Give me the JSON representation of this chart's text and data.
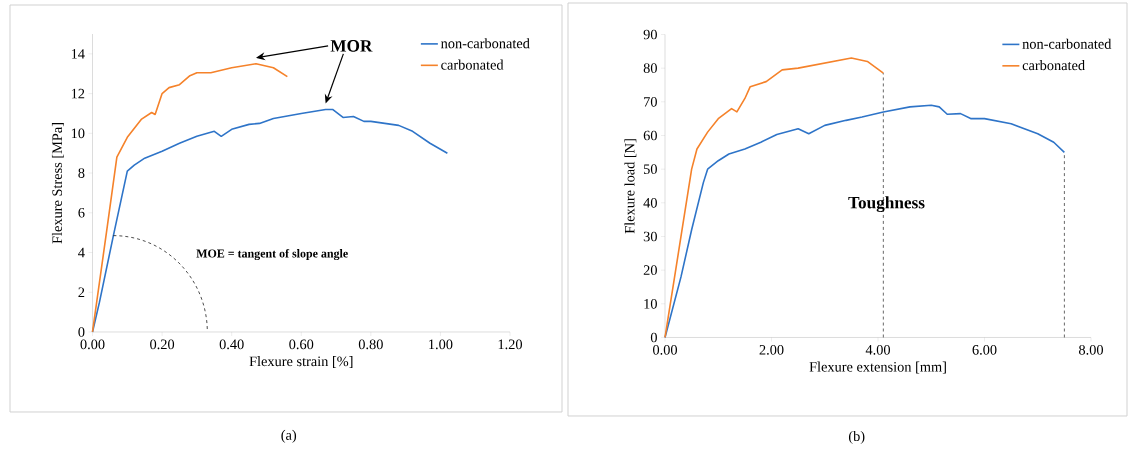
{
  "chart_data": [
    {
      "type": "line",
      "xlabel": "Flexure strain [%]",
      "ylabel": "Flexure Stress [MPa]",
      "xlim": [
        0,
        1.2
      ],
      "ylim": [
        0,
        15
      ],
      "xticks": [
        {
          "value": 0,
          "label": "0.00"
        },
        {
          "value": 0.2,
          "label": "0.20"
        },
        {
          "value": 0.4,
          "label": "0.40"
        },
        {
          "value": 0.6,
          "label": "0.60"
        },
        {
          "value": 0.8,
          "label": "0.80"
        },
        {
          "value": 1.0,
          "label": "1.00"
        },
        {
          "value": 1.2,
          "label": "1.20"
        }
      ],
      "yticks": [
        0,
        2,
        4,
        6,
        8,
        10,
        12,
        14
      ],
      "legend": "top right",
      "series": [
        {
          "name": "non-carbonated",
          "color": "#2e74c8",
          "x": [
            0,
            0.02,
            0.06,
            0.1,
            0.12,
            0.15,
            0.2,
            0.25,
            0.3,
            0.35,
            0.37,
            0.4,
            0.45,
            0.48,
            0.52,
            0.6,
            0.67,
            0.69,
            0.72,
            0.75,
            0.78,
            0.8,
            0.88,
            0.92,
            0.97,
            1.02
          ],
          "values": [
            0,
            1.5,
            4.85,
            8.1,
            8.4,
            8.75,
            9.1,
            9.5,
            9.85,
            10.1,
            9.85,
            10.2,
            10.45,
            10.5,
            10.75,
            11.0,
            11.2,
            11.2,
            10.8,
            10.85,
            10.6,
            10.6,
            10.4,
            10.1,
            9.5,
            9.0
          ]
        },
        {
          "name": "carbonated",
          "color": "#f5822a",
          "x": [
            0,
            0.04,
            0.07,
            0.1,
            0.14,
            0.17,
            0.18,
            0.2,
            0.22,
            0.25,
            0.28,
            0.3,
            0.34,
            0.4,
            0.47,
            0.52,
            0.56
          ],
          "values": [
            0,
            5,
            8.8,
            9.8,
            10.7,
            11.05,
            10.95,
            12.0,
            12.3,
            12.45,
            12.9,
            13.05,
            13.05,
            13.3,
            13.5,
            13.3,
            12.85
          ]
        }
      ],
      "annotations": [
        "(a)",
        "MOR",
        "MOE = tangent of slope angle"
      ]
    },
    {
      "type": "line",
      "xlabel": "Flexure extension [mm]",
      "ylabel": "Flexure load [N]",
      "xlim": [
        0,
        8
      ],
      "ylim": [
        0,
        90
      ],
      "xticks": [
        {
          "value": 0,
          "label": "0.00"
        },
        {
          "value": 2,
          "label": "2.00"
        },
        {
          "value": 4,
          "label": "4.00"
        },
        {
          "value": 6,
          "label": "6.00"
        },
        {
          "value": 8,
          "label": "8.00"
        }
      ],
      "yticks": [
        0,
        10,
        20,
        30,
        40,
        50,
        60,
        70,
        80,
        90
      ],
      "legend": "top right",
      "series": [
        {
          "name": "non-carbonated",
          "color": "#2e74c8",
          "x": [
            0,
            0.3,
            0.5,
            0.72,
            0.8,
            1.0,
            1.2,
            1.5,
            1.8,
            2.1,
            2.5,
            2.7,
            3.0,
            3.4,
            3.7,
            4.1,
            4.6,
            5.0,
            5.15,
            5.3,
            5.55,
            5.75,
            6.0,
            6.5,
            7.0,
            7.3,
            7.5
          ],
          "values": [
            0,
            18,
            32,
            46,
            50,
            52.5,
            54.5,
            56,
            58,
            60.3,
            62,
            60.5,
            63,
            64.5,
            65.5,
            67,
            68.5,
            69,
            68.5,
            66.3,
            66.5,
            65,
            65,
            63.5,
            60.5,
            58,
            55
          ]
        },
        {
          "name": "carbonated",
          "color": "#f5822a",
          "x": [
            0,
            0.3,
            0.5,
            0.6,
            0.8,
            1.0,
            1.25,
            1.35,
            1.5,
            1.6,
            1.9,
            2.2,
            2.5,
            3.0,
            3.5,
            3.8,
            4.1
          ],
          "values": [
            0,
            30,
            50,
            56,
            61,
            65,
            68,
            67,
            71,
            74.5,
            76,
            79.5,
            80,
            81.5,
            83,
            82,
            78.5
          ]
        }
      ],
      "ref_lines": [
        {
          "axis": "x",
          "value": 4.1,
          "color": "#404040",
          "line_style": "dashed"
        },
        {
          "axis": "x",
          "value": 7.5,
          "color": "#404040",
          "line_style": "dashed"
        }
      ],
      "annotations": [
        "(b)",
        "Toughness"
      ]
    }
  ]
}
